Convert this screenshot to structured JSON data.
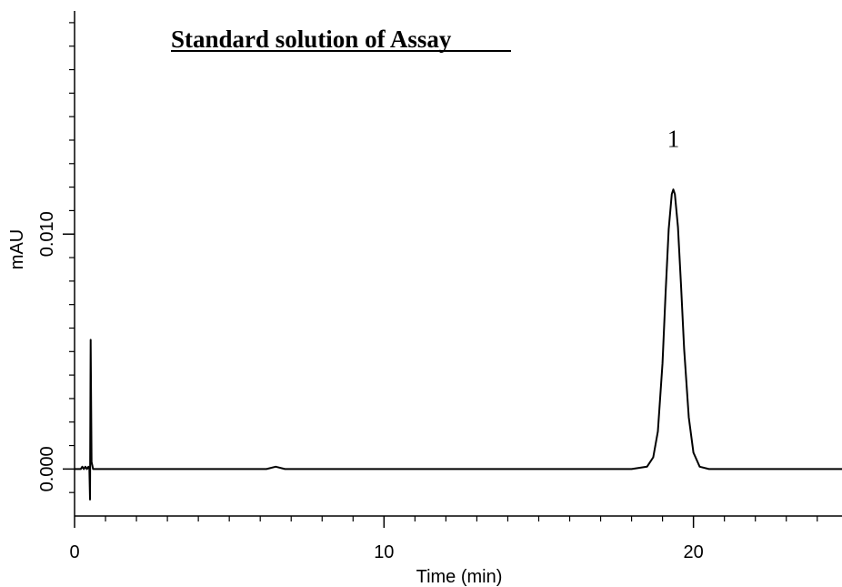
{
  "chart_data": {
    "type": "line",
    "title": "Standard solution of Assay",
    "xlabel": "Time (min)",
    "ylabel": "mAU",
    "xlim": [
      0,
      24.8
    ],
    "ylim": [
      -0.002,
      0.0195
    ],
    "x_ticks": [
      0,
      10,
      20
    ],
    "x_tick_labels": [
      "0",
      "10",
      "20"
    ],
    "y_ticks": [
      0,
      0.01
    ],
    "y_tick_labels": [
      "0.000",
      "0.010"
    ],
    "grid": false,
    "legend": "none",
    "annotations": [
      {
        "text": "1",
        "x": 19.35,
        "y": 0.0137
      }
    ],
    "series": [
      {
        "color": "#000000",
        "points": [
          [
            0.0,
            0.0
          ],
          [
            0.2,
            0.0
          ],
          [
            0.25,
            0.0001
          ],
          [
            0.3,
            0.0
          ],
          [
            0.35,
            0.0001
          ],
          [
            0.4,
            0.0
          ],
          [
            0.45,
            0.0001
          ],
          [
            0.48,
            0.0
          ],
          [
            0.5,
            -0.0013
          ],
          [
            0.52,
            0.0055
          ],
          [
            0.55,
            0.0003
          ],
          [
            0.6,
            0.0
          ],
          [
            1.0,
            0.0
          ],
          [
            2.0,
            0.0
          ],
          [
            3.0,
            0.0
          ],
          [
            4.0,
            0.0
          ],
          [
            5.0,
            0.0
          ],
          [
            6.2,
            0.0
          ],
          [
            6.5,
            0.0001
          ],
          [
            6.8,
            0.0
          ],
          [
            8.0,
            0.0
          ],
          [
            10.0,
            0.0
          ],
          [
            12.0,
            0.0
          ],
          [
            14.0,
            0.0
          ],
          [
            16.0,
            0.0
          ],
          [
            18.0,
            0.0
          ],
          [
            18.5,
            0.0001
          ],
          [
            18.7,
            0.0005
          ],
          [
            18.85,
            0.0016
          ],
          [
            19.0,
            0.0045
          ],
          [
            19.1,
            0.0075
          ],
          [
            19.2,
            0.0102
          ],
          [
            19.3,
            0.0117
          ],
          [
            19.35,
            0.0119
          ],
          [
            19.4,
            0.0117
          ],
          [
            19.5,
            0.0103
          ],
          [
            19.6,
            0.0078
          ],
          [
            19.7,
            0.0051
          ],
          [
            19.85,
            0.0022
          ],
          [
            20.0,
            0.0007
          ],
          [
            20.2,
            0.0001
          ],
          [
            20.5,
            0.0
          ],
          [
            22.0,
            0.0
          ],
          [
            24.8,
            0.0
          ]
        ]
      }
    ]
  }
}
